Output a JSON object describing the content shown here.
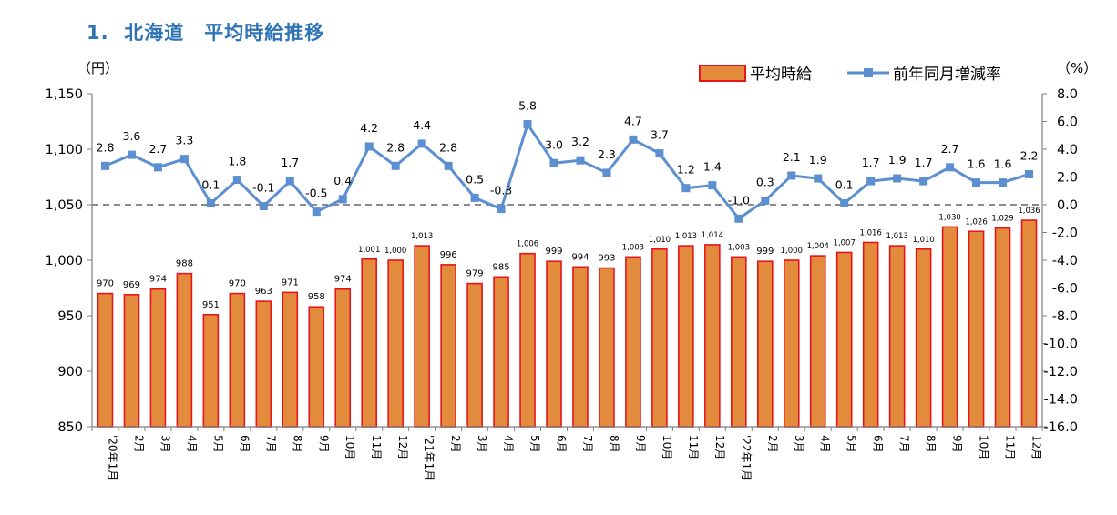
{
  "page": {
    "title": "1.  北海道　平均時給推移"
  },
  "colors": {
    "bar_fill": "#e38b3c",
    "bar_stroke": "#e8141b",
    "line": "#5b8fd0",
    "title": "#2e74b5",
    "zero_line": "#8a8a8a"
  },
  "chart_data": {
    "type": "bar+line",
    "left_axis": {
      "unit": "（円）",
      "ylim": [
        850,
        1150
      ],
      "ticks": [
        "850",
        "900",
        "950",
        "1,000",
        "1,050",
        "1,100",
        "1,150"
      ]
    },
    "right_axis": {
      "unit": "（%）",
      "ylim": [
        -16,
        8
      ],
      "ticks": [
        "-16.0",
        "-14.0",
        "-12.0",
        "-10.0",
        "-8.0",
        "-6.0",
        "-4.0",
        "-2.0",
        "0.0",
        "2.0",
        "4.0",
        "6.0",
        "8.0"
      ]
    },
    "legend": {
      "bar": "平均時給",
      "line": "前年同月増減率",
      "position": "top-right"
    },
    "categories": [
      "'20年1月",
      "2月",
      "3月",
      "4月",
      "5月",
      "6月",
      "7月",
      "8月",
      "9月",
      "10月",
      "11月",
      "12月",
      "'21年1月",
      "2月",
      "3月",
      "4月",
      "5月",
      "6月",
      "7月",
      "8月",
      "9月",
      "10月",
      "11月",
      "12月",
      "'22年1月",
      "2月",
      "3月",
      "4月",
      "5月",
      "6月",
      "7月",
      "8月",
      "9月",
      "10月",
      "11月",
      "12月"
    ],
    "series": [
      {
        "name": "平均時給",
        "kind": "bar",
        "values": [
          970,
          969,
          974,
          988,
          951,
          970,
          963,
          971,
          958,
          974,
          1001,
          1000,
          1013,
          996,
          979,
          985,
          1006,
          999,
          994,
          993,
          1003,
          1010,
          1013,
          1014,
          1003,
          999,
          1000,
          1004,
          1007,
          1016,
          1013,
          1010,
          1030,
          1026,
          1029,
          1036
        ],
        "labels": [
          "970",
          "969",
          "974",
          "988",
          "951",
          "970",
          "963",
          "971",
          "958",
          "974",
          "1,001",
          "1,000",
          "1,013",
          "996",
          "979",
          "985",
          "1,006",
          "999",
          "994",
          "993",
          "1,003",
          "1,010",
          "1,013",
          "1,014",
          "1,003",
          "999",
          "1,000",
          "1,004",
          "1,007",
          "1,016",
          "1,013",
          "1,010",
          "1,030",
          "1,026",
          "1,029",
          "1,036"
        ]
      },
      {
        "name": "前年同月増減率",
        "kind": "line",
        "values": [
          2.8,
          3.6,
          2.7,
          3.3,
          0.1,
          1.8,
          -0.1,
          1.7,
          -0.5,
          0.4,
          4.2,
          2.8,
          4.4,
          2.8,
          0.5,
          -0.3,
          5.8,
          3.0,
          3.2,
          2.3,
          4.7,
          3.7,
          1.2,
          1.4,
          -1.0,
          0.3,
          2.1,
          1.9,
          0.1,
          1.7,
          1.9,
          1.7,
          2.7,
          1.6,
          1.6,
          2.2
        ],
        "labels": [
          "2.8",
          "3.6",
          "2.7",
          "3.3",
          "0.1",
          "1.8",
          "-0.1",
          "1.7",
          "-0.5",
          "0.4",
          "4.2",
          "2.8",
          "4.4",
          "2.8",
          "0.5",
          "-0.3",
          "5.8",
          "3.0",
          "3.2",
          "2.3",
          "4.7",
          "3.7",
          "1.2",
          "1.4",
          "-1.0",
          "0.3",
          "2.1",
          "1.9",
          "0.1",
          "1.7",
          "1.9",
          "1.7",
          "2.7",
          "1.6",
          "1.6",
          "2.2"
        ]
      }
    ]
  }
}
